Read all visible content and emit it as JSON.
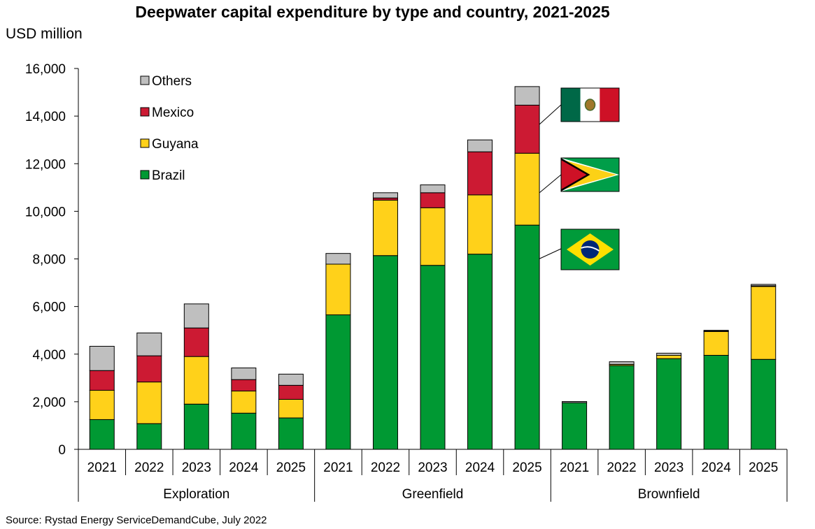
{
  "chart_data": {
    "type": "bar",
    "stacked": true,
    "title": "Deepwater capital expenditure by type and country, 2021-2025",
    "ylabel": "USD million",
    "ylim": [
      0,
      16000
    ],
    "yticks": [
      0,
      2000,
      4000,
      6000,
      8000,
      10000,
      12000,
      14000,
      16000
    ],
    "ytick_labels": [
      "0",
      "2,000",
      "4,000",
      "6,000",
      "8,000",
      "10,000",
      "12,000",
      "14,000",
      "16,000"
    ],
    "groups": [
      {
        "name": "Exploration",
        "categories": [
          "2021",
          "2022",
          "2023",
          "2024",
          "2025"
        ]
      },
      {
        "name": "Greenfield",
        "categories": [
          "2021",
          "2022",
          "2023",
          "2024",
          "2025"
        ]
      },
      {
        "name": "Brownfield",
        "categories": [
          "2021",
          "2022",
          "2023",
          "2024",
          "2025"
        ]
      }
    ],
    "series": [
      {
        "name": "Brazil",
        "color": "#009933",
        "values": [
          1250,
          1080,
          1900,
          1520,
          1320,
          5650,
          8140,
          7730,
          8200,
          9420,
          1960,
          3520,
          3810,
          3950,
          3780
        ]
      },
      {
        "name": "Guyana",
        "color": "#ffd11a",
        "values": [
          1230,
          1750,
          2000,
          930,
          780,
          2130,
          2330,
          2420,
          2490,
          3020,
          0,
          50,
          140,
          1000,
          3060
        ]
      },
      {
        "name": "Mexico",
        "color": "#cc1a33",
        "values": [
          830,
          1100,
          1200,
          480,
          590,
          0,
          90,
          630,
          1810,
          2020,
          0,
          0,
          0,
          20,
          30
        ]
      },
      {
        "name": "Others",
        "color": "#bfbfbf",
        "values": [
          1020,
          960,
          1010,
          490,
          470,
          450,
          220,
          330,
          500,
          780,
          50,
          110,
          90,
          30,
          60
        ]
      }
    ],
    "legend": {
      "entries": [
        "Others",
        "Mexico",
        "Guyana",
        "Brazil"
      ],
      "placement": "top-left"
    },
    "annotations": {
      "flags": [
        "mexico-flag",
        "guyana-flag",
        "brazil-flag"
      ]
    },
    "source": "Source: Rystad Energy ServiceDemandCube, July 2022"
  }
}
